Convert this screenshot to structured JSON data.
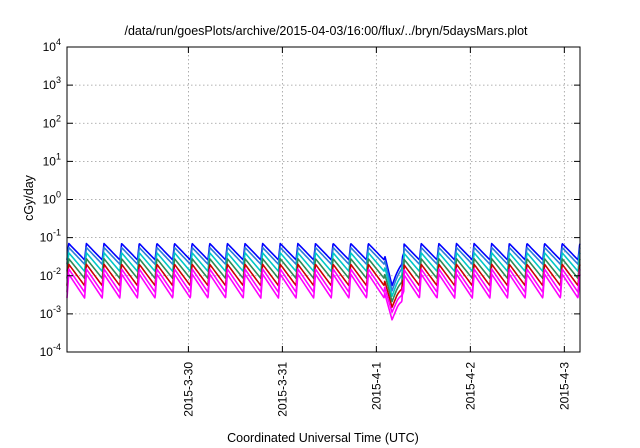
{
  "chart_data": {
    "type": "line",
    "title": "/data/run/goesPlots/archive/2015-04-03/16:00/flux/../bryn/5daysMars.plot",
    "xlabel": "Coordinated Universal Time (UTC)",
    "ylabel": "cGy/day",
    "xlim": [
      "2015-03-29T05:00",
      "2015-04-03T16:00"
    ],
    "ylim": [
      0.0001,
      10000
    ],
    "yscale": "log",
    "grid": true,
    "x_tick_labels": [
      "2015-3-30",
      "2015-3-31",
      "2015-4-1",
      "2015-4-2",
      "2015-4-3"
    ],
    "y_ticks": [
      {
        "base": "10",
        "exp": "-4"
      },
      {
        "base": "10",
        "exp": "-3"
      },
      {
        "base": "10",
        "exp": "-2"
      },
      {
        "base": "10",
        "exp": "-1"
      },
      {
        "base": "10",
        "exp": "0"
      },
      {
        "base": "10",
        "exp": "1"
      },
      {
        "base": "10",
        "exp": "2"
      },
      {
        "base": "10",
        "exp": "3"
      },
      {
        "base": "10",
        "exp": "4"
      }
    ],
    "series": [
      {
        "color": "#0000ff",
        "peak": 0.07,
        "trough": 0.026,
        "dip_min": 0.0055
      },
      {
        "color": "#2b7bd9",
        "peak": 0.055,
        "trough": 0.02,
        "dip_min": 0.004
      },
      {
        "color": "#00c8c8",
        "peak": 0.04,
        "trough": 0.013,
        "dip_min": 0.0029
      },
      {
        "color": "#2e8b57",
        "peak": 0.028,
        "trough": 0.0085,
        "dip_min": 0.0021
      },
      {
        "color": "#cc0000",
        "peak": 0.02,
        "trough": 0.0055,
        "dip_min": 0.0015
      },
      {
        "color": "#ff00ff",
        "peak": 0.015,
        "trough": 0.0037,
        "dip_min": 0.0011
      },
      {
        "color": "#ff00ff",
        "peak": 0.011,
        "trough": 0.0026,
        "dip_min": 0.0007
      }
    ],
    "cycle_hours": 4.5,
    "dip_event": {
      "start": "2015-04-01T14:00",
      "minimum": "2015-04-01T16:00",
      "end": "2015-04-01T19:00"
    }
  }
}
